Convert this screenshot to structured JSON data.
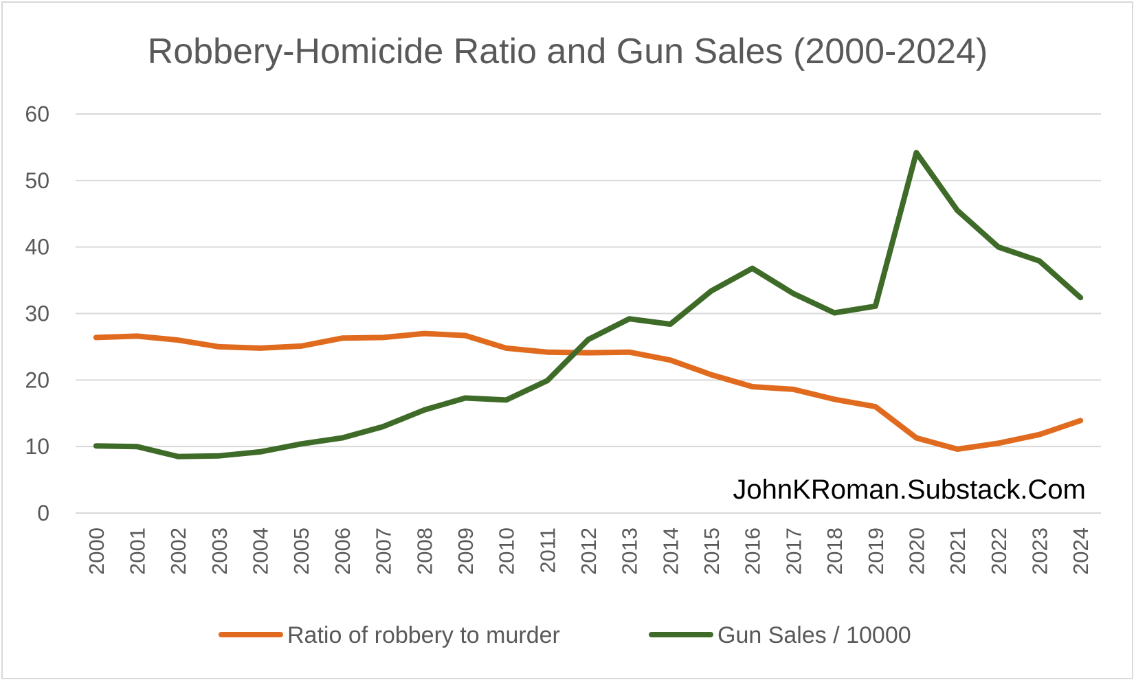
{
  "chart_data": {
    "type": "line",
    "title": "Robbery-Homicide Ratio and Gun Sales (2000-2024)",
    "xlabel": "",
    "ylabel": "",
    "x": [
      "2000",
      "2001",
      "2002",
      "2003",
      "2004",
      "2005",
      "2006",
      "2007",
      "2008",
      "2009",
      "2010",
      "2011",
      "2012",
      "2013",
      "2014",
      "2015",
      "2016",
      "2017",
      "2018",
      "2019",
      "2020",
      "2021",
      "2022",
      "2023",
      "2024"
    ],
    "ylim": [
      0,
      60
    ],
    "yticks": [
      "0",
      "10",
      "20",
      "30",
      "40",
      "50",
      "60"
    ],
    "grid": true,
    "legend_position": "bottom",
    "series": [
      {
        "name": "Ratio of robbery to murder",
        "color": "#e06b1f",
        "values": [
          26.4,
          26.6,
          26.0,
          25.0,
          24.8,
          25.1,
          26.3,
          26.4,
          27.0,
          26.7,
          24.8,
          24.2,
          24.1,
          24.2,
          23.0,
          20.8,
          19.0,
          18.6,
          17.1,
          16.0,
          11.3,
          9.6,
          10.5,
          11.8,
          13.9
        ]
      },
      {
        "name": "Gun Sales / 10000",
        "color": "#3f6b29",
        "values": [
          10.1,
          10.0,
          8.5,
          8.6,
          9.2,
          10.4,
          11.3,
          13.0,
          15.5,
          17.3,
          17.0,
          19.9,
          26.1,
          29.2,
          28.4,
          33.4,
          36.8,
          33.0,
          30.1,
          31.1,
          54.2,
          45.5,
          40.0,
          37.9,
          32.4
        ]
      }
    ],
    "annotations": [
      "JohnKRoman.Substack.Com"
    ]
  }
}
